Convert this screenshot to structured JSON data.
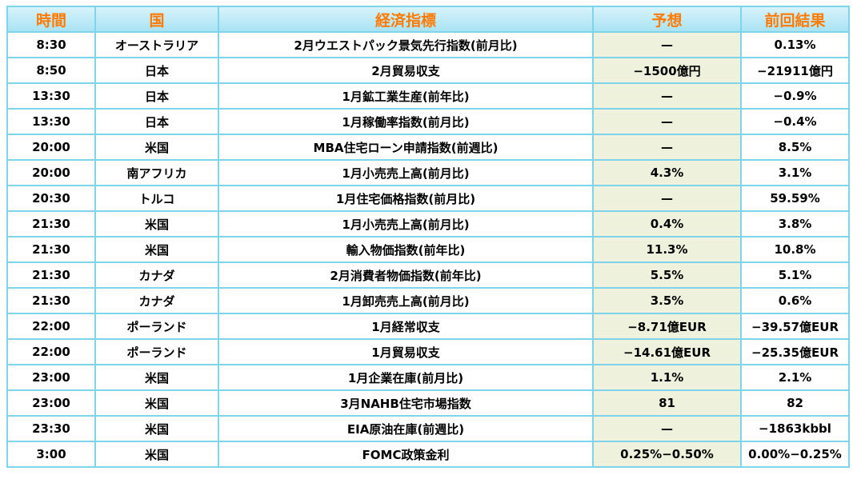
{
  "headers": {
    "time": "時間",
    "country": "国",
    "indicator": "経済指標",
    "forecast": "予想",
    "previous": "前回結果"
  },
  "rows": [
    {
      "time": "8:30",
      "country": "オーストラリア",
      "indicator": "2月ウエストパック景気先行指数(前月比)",
      "forecast": "—",
      "previous": "0.13%"
    },
    {
      "time": "8:50",
      "country": "日本",
      "indicator": "2月貿易収支",
      "forecast": "−1500億円",
      "previous": "−21911億円"
    },
    {
      "time": "13:30",
      "country": "日本",
      "indicator": "1月鉱工業生産(前年比)",
      "forecast": "—",
      "previous": "−0.9%"
    },
    {
      "time": "13:30",
      "country": "日本",
      "indicator": "1月稼働率指数(前月比)",
      "forecast": "—",
      "previous": "−0.4%"
    },
    {
      "time": "20:00",
      "country": "米国",
      "indicator": "MBA住宅ローン申請指数(前週比)",
      "forecast": "—",
      "previous": "8.5%"
    },
    {
      "time": "20:00",
      "country": "南アフリカ",
      "indicator": "1月小売売上高(前月比)",
      "forecast": "4.3%",
      "previous": "3.1%"
    },
    {
      "time": "20:30",
      "country": "トルコ",
      "indicator": "1月住宅価格指数(前月比)",
      "forecast": "—",
      "previous": "59.59%"
    },
    {
      "time": "21:30",
      "country": "米国",
      "indicator": "1月小売売上高(前月比)",
      "forecast": "0.4%",
      "previous": "3.8%"
    },
    {
      "time": "21:30",
      "country": "米国",
      "indicator": "輸入物価指数(前年比)",
      "forecast": "11.3%",
      "previous": "10.8%"
    },
    {
      "time": "21:30",
      "country": "カナダ",
      "indicator": "2月消費者物価指数(前年比)",
      "forecast": "5.5%",
      "previous": "5.1%"
    },
    {
      "time": "21:30",
      "country": "カナダ",
      "indicator": "1月卸売売上高(前月比)",
      "forecast": "3.5%",
      "previous": "0.6%"
    },
    {
      "time": "22:00",
      "country": "ポーランド",
      "indicator": "1月経常収支",
      "forecast": "−8.71億EUR",
      "previous": "−39.57億EUR"
    },
    {
      "time": "22:00",
      "country": "ポーランド",
      "indicator": "1月貿易収支",
      "forecast": "−14.61億EUR",
      "previous": "−25.35億EUR"
    },
    {
      "time": "23:00",
      "country": "米国",
      "indicator": "1月企業在庫(前月比)",
      "forecast": "1.1%",
      "previous": "2.1%"
    },
    {
      "time": "23:00",
      "country": "米国",
      "indicator": "3月NAHB住宅市場指数",
      "forecast": "81",
      "previous": "82"
    },
    {
      "time": "23:30",
      "country": "米国",
      "indicator": "EIA原油在庫(前週比)",
      "forecast": "—",
      "previous": "−1863kbbl"
    },
    {
      "time": "3:00",
      "country": "米国",
      "indicator": "FOMC政策金利",
      "forecast": "0.25%−0.50%",
      "previous": "0.00%−0.25%"
    }
  ],
  "colors": {
    "border": "#7fd3ea",
    "header_text": "#ff7a00",
    "forecast_bg": "#eef2dc"
  }
}
